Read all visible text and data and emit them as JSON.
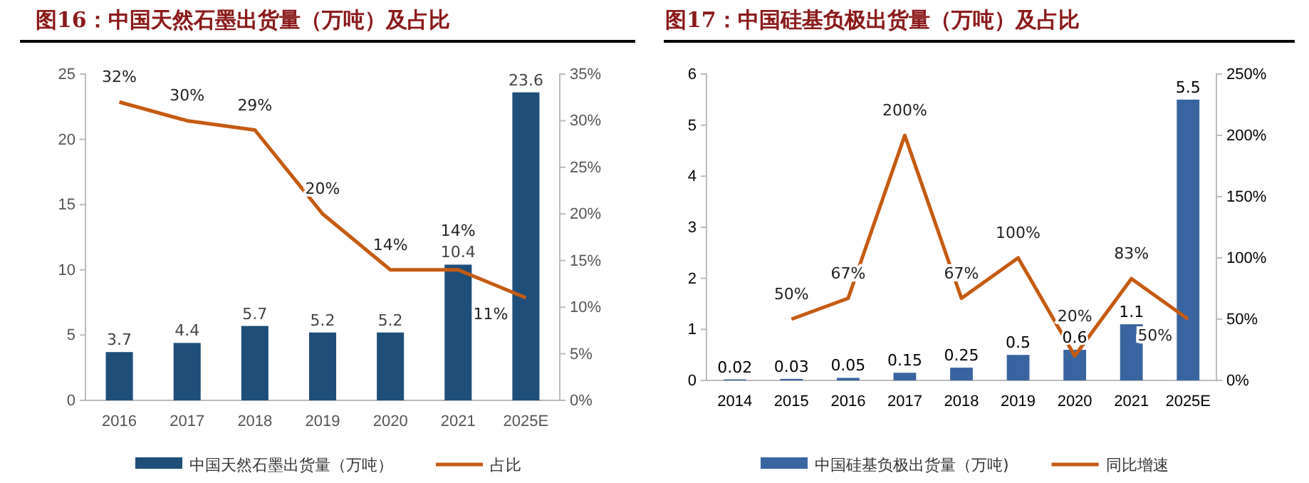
{
  "chart_data": [
    {
      "type": "bar",
      "title": "图16：中国天然石墨出货量（万吨）及占比",
      "categories": [
        "2016",
        "2017",
        "2018",
        "2019",
        "2020",
        "2021",
        "2025E"
      ],
      "series": [
        {
          "name": "中国天然石墨出货量（万吨）",
          "color": "#1f4e79",
          "values": [
            3.7,
            4.4,
            5.7,
            5.2,
            5.2,
            10.4,
            23.6
          ],
          "value_labels": [
            "3.7",
            "4.4",
            "5.7",
            "5.2",
            "5.2",
            "10.4",
            "23.6"
          ]
        },
        {
          "name": "占比",
          "type": "line",
          "axis": "y2",
          "color": "#c55a11",
          "values": [
            32,
            30,
            29,
            20,
            14,
            14,
            11
          ],
          "value_labels": [
            "32%",
            "30%",
            "29%",
            "20%",
            "14%",
            "14%",
            "11%"
          ]
        }
      ],
      "ylim": [
        0,
        25
      ],
      "yticks": [
        0,
        5,
        10,
        15,
        20,
        25
      ],
      "y2lim": [
        0,
        35
      ],
      "y2ticks": [
        {
          "value": 0,
          "label": "0%"
        },
        {
          "value": 5,
          "label": "5%"
        },
        {
          "value": 10,
          "label": "10%"
        },
        {
          "value": 15,
          "label": "15%"
        },
        {
          "value": 20,
          "label": "20%"
        },
        {
          "value": 25,
          "label": "25%"
        },
        {
          "value": 30,
          "label": "30%"
        },
        {
          "value": 35,
          "label": "35%"
        }
      ],
      "grid": false,
      "legend": "bottom",
      "marker": "none",
      "line_style": "solid"
    },
    {
      "type": "bar",
      "title": "图17：中国硅基负极出货量（万吨）及占比",
      "categories": [
        "2014",
        "2015",
        "2016",
        "2017",
        "2018",
        "2019",
        "2020",
        "2021",
        "2025E"
      ],
      "series": [
        {
          "name": "中国硅基负极出货量（万吨)",
          "color": "#3a64a0",
          "values": [
            0.02,
            0.03,
            0.05,
            0.15,
            0.25,
            0.5,
            0.6,
            1.1,
            5.5
          ],
          "value_labels": [
            "0.02",
            "0.03",
            "0.05",
            "0.15",
            "0.25",
            "0.5",
            "0.6",
            "1.1",
            "5.5"
          ]
        },
        {
          "name": "同比增速",
          "type": "line",
          "axis": "y2",
          "color": "#c55a11",
          "values": [
            null,
            50,
            67,
            200,
            67,
            100,
            20,
            83,
            50
          ],
          "value_labels": [
            null,
            "50%",
            "67%",
            "200%",
            "67%",
            "100%",
            "20%",
            "83%",
            "50%"
          ]
        }
      ],
      "ylim": [
        0,
        6
      ],
      "yticks": [
        0,
        1,
        2,
        3,
        4,
        5,
        6
      ],
      "y2lim": [
        0,
        250
      ],
      "y2ticks": [
        {
          "value": 0,
          "label": "0%"
        },
        {
          "value": 50,
          "label": "50%"
        },
        {
          "value": 100,
          "label": "100%"
        },
        {
          "value": 150,
          "label": "150%"
        },
        {
          "value": 200,
          "label": "200%"
        },
        {
          "value": 250,
          "label": "250%"
        }
      ],
      "grid": false,
      "legend": "bottom",
      "marker": "none",
      "line_style": "solid"
    }
  ]
}
